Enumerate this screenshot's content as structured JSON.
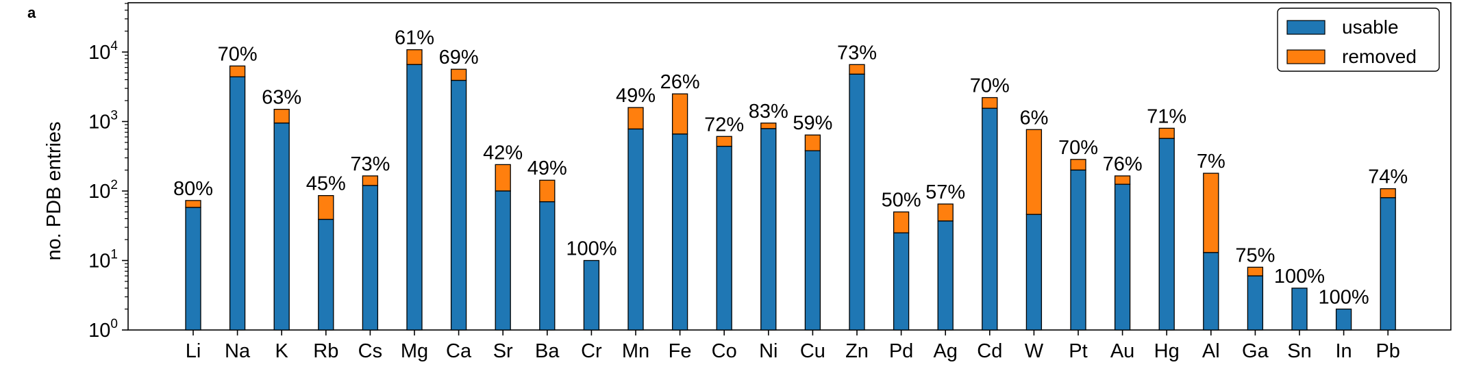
{
  "chart_data": {
    "type": "bar",
    "stacked": true,
    "panel_label": "a",
    "ylabel": "no. PDB entries",
    "yscale": "log",
    "ylim": [
      1,
      50000
    ],
    "yticks": [
      {
        "value": 1,
        "base": "10",
        "exp": "0"
      },
      {
        "value": 10,
        "base": "10",
        "exp": "1"
      },
      {
        "value": 100,
        "base": "10",
        "exp": "2"
      },
      {
        "value": 1000,
        "base": "10",
        "exp": "3"
      },
      {
        "value": 10000,
        "base": "10",
        "exp": "4"
      }
    ],
    "categories": [
      "Li",
      "Na",
      "K",
      "Rb",
      "Cs",
      "Mg",
      "Ca",
      "Sr",
      "Ba",
      "Cr",
      "Mn",
      "Fe",
      "Co",
      "Ni",
      "Cu",
      "Zn",
      "Pd",
      "Ag",
      "Cd",
      "W",
      "Pt",
      "Au",
      "Hg",
      "Al",
      "Ga",
      "Sn",
      "In",
      "Pb"
    ],
    "series": [
      {
        "name": "usable",
        "color": "#1f77b4",
        "values": [
          58,
          4400,
          950,
          39,
          120,
          6600,
          3900,
          100,
          70,
          10,
          780,
          660,
          440,
          790,
          380,
          4800,
          25,
          37,
          1550,
          46,
          200,
          125,
          570,
          13,
          6,
          4,
          2,
          80
        ]
      },
      {
        "name": "removed",
        "color": "#ff7f0e",
        "values": [
          15,
          1900,
          550,
          47,
          45,
          4200,
          1750,
          140,
          73,
          0,
          810,
          1840,
          170,
          160,
          260,
          1800,
          25,
          28,
          660,
          720,
          85,
          40,
          230,
          167,
          2,
          0,
          0,
          28
        ]
      }
    ],
    "percent_labels": [
      "80%",
      "70%",
      "63%",
      "45%",
      "73%",
      "61%",
      "69%",
      "42%",
      "49%",
      "100%",
      "49%",
      "26%",
      "72%",
      "83%",
      "59%",
      "73%",
      "50%",
      "57%",
      "70%",
      "6%",
      "70%",
      "76%",
      "71%",
      "7%",
      "75%",
      "100%",
      "100%",
      "74%"
    ],
    "legend": {
      "position": "top-right",
      "entries": [
        "usable",
        "removed"
      ]
    },
    "grid": false
  }
}
